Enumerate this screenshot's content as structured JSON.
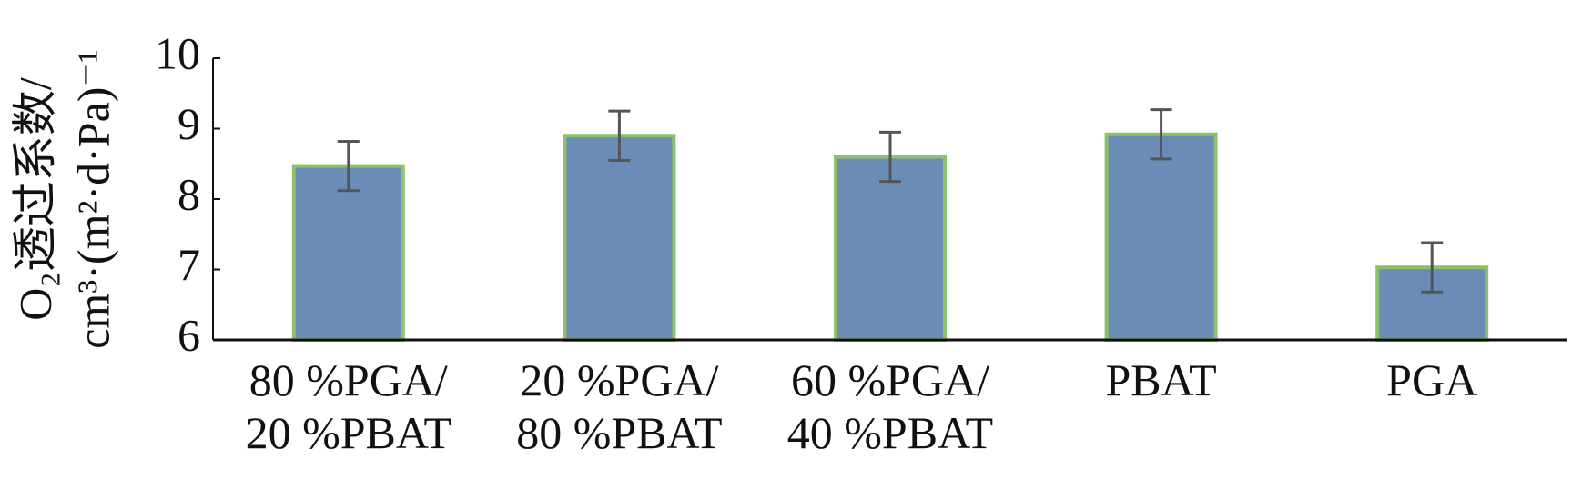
{
  "chart_data": {
    "type": "bar",
    "y_label": [
      "O₂透过系数/",
      "cm³·(m²·d·Pa)⁻¹"
    ],
    "categories": [
      "80 %PGA/\n20 %PBAT",
      "20 %PGA/\n80 %PBAT",
      "60 %PGA/\n40 %PBAT",
      "PBAT",
      "PGA"
    ],
    "values": [
      8.47,
      8.9,
      8.6,
      8.92,
      7.03
    ],
    "errors": [
      0.35,
      0.35,
      0.35,
      0.35,
      0.35
    ],
    "color": "#6b8cb6",
    "edge_color": "#8cc36a",
    "error_color": "#555555",
    "ylim": [
      6,
      10
    ],
    "yticks": [
      6,
      7,
      8,
      9,
      10
    ]
  }
}
